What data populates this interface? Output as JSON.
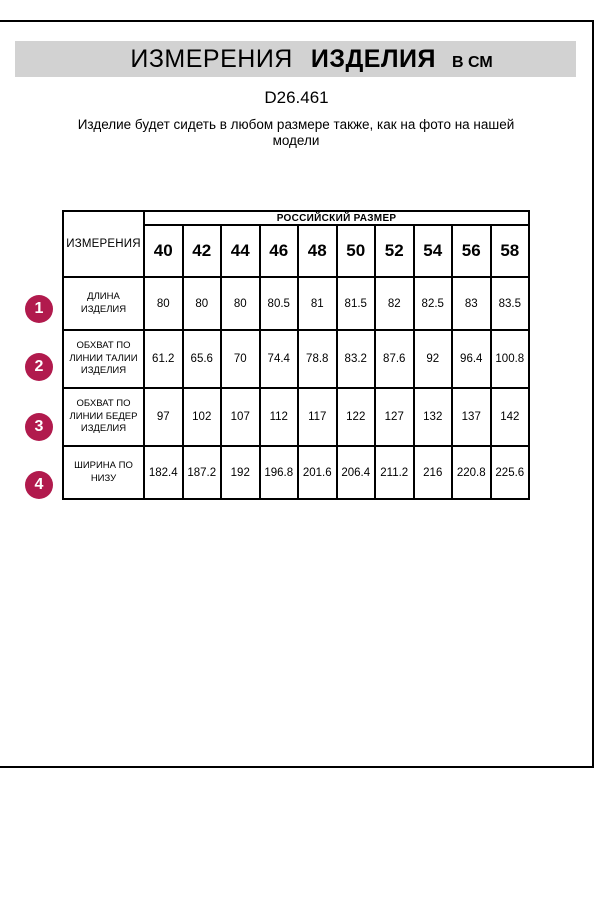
{
  "header": {
    "title_word1": "ИЗМЕРЕНИЯ",
    "title_word2": "ИЗДЕЛИЯ",
    "title_unit": "В СМ"
  },
  "model_code": "D26.461",
  "note": "Изделие будет сидеть в любом размере также, как на фото на нашей модели",
  "size_table": {
    "measure_col_header": "ИЗМЕРЕНИЯ",
    "size_group_header": "РОССИЙСКИЙ РАЗМЕР",
    "sizes": [
      "40",
      "42",
      "44",
      "46",
      "48",
      "50",
      "52",
      "54",
      "56",
      "58"
    ],
    "rows": [
      {
        "num": "1",
        "label": "ДЛИНА ИЗДЕЛИЯ",
        "values": [
          "80",
          "80",
          "80",
          "80.5",
          "81",
          "81.5",
          "82",
          "82.5",
          "83",
          "83.5"
        ]
      },
      {
        "num": "2",
        "label": "ОБХВАТ ПО ЛИНИИ ТАЛИИ ИЗДЕЛИЯ",
        "values": [
          "61.2",
          "65.6",
          "70",
          "74.4",
          "78.8",
          "83.2",
          "87.6",
          "92",
          "96.4",
          "100.8"
        ]
      },
      {
        "num": "3",
        "label": "ОБХВАТ ПО ЛИНИИ БЕДЕР ИЗДЕЛИЯ",
        "values": [
          "97",
          "102",
          "107",
          "112",
          "117",
          "122",
          "127",
          "132",
          "137",
          "142"
        ]
      },
      {
        "num": "4",
        "label": "ШИРИНА ПО НИЗУ",
        "values": [
          "182.4",
          "187.2",
          "192",
          "196.8",
          "201.6",
          "206.4",
          "211.2",
          "216",
          "220.8",
          "225.6"
        ]
      }
    ]
  },
  "colors": {
    "accent_circle": "#b11a4d",
    "header_bar_bg": "#d2d2d2"
  }
}
